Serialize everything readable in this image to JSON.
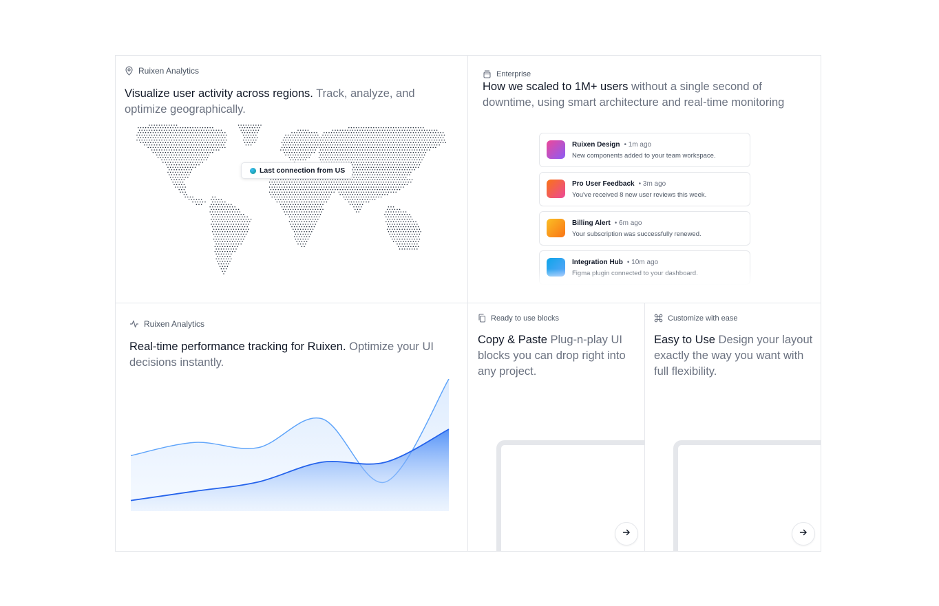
{
  "map_card": {
    "eyebrow": "Ruixen Analytics",
    "headline_strong": "Visualize user activity across regions.",
    "headline_muted": " Track, analyze, and optimize geographically.",
    "tooltip": "Last connection from US"
  },
  "enterprise_card": {
    "eyebrow": "Enterprise",
    "headline_strong": "How we scaled to 1M+ users",
    "headline_muted": " without a single second of downtime, using smart architecture and real-time monitoring",
    "notifications": [
      {
        "title": "Ruixen Design",
        "time": "• 1m ago",
        "body": "New components added to your team workspace.",
        "color_from": "#ec4899",
        "color_to": "#8b5cf6"
      },
      {
        "title": "Pro User Feedback",
        "time": "• 3m ago",
        "body": "You've received 8 new user reviews this week.",
        "color_from": "#f97316",
        "color_to": "#ec4899"
      },
      {
        "title": "Billing Alert",
        "time": "• 6m ago",
        "body": "Your subscription was successfully renewed.",
        "color_from": "#fbbf24",
        "color_to": "#f97316"
      },
      {
        "title": "Integration Hub",
        "time": "• 10m ago",
        "body": "Figma plugin connected to your dashboard.",
        "color_from": "#0ea5e9",
        "color_to": "#60a5fa"
      }
    ]
  },
  "performance_card": {
    "eyebrow": "Ruixen Analytics",
    "headline_strong": "Real-time performance tracking for Ruixen.",
    "headline_muted": " Optimize your UI decisions instantly."
  },
  "copy_card": {
    "eyebrow": "Ready to use blocks",
    "headline_strong": "Copy & Paste",
    "headline_muted": " Plug-n-play UI blocks you can drop right into any project."
  },
  "customize_card": {
    "eyebrow": "Customize with ease",
    "headline_strong": "Easy to Use",
    "headline_muted": " Design your layout exactly the way you want with full flexibility."
  },
  "chart_data": {
    "type": "area",
    "series": [
      {
        "values": [
          42,
          52,
          48,
          70,
          22,
          100
        ],
        "color": "#60a5fa",
        "fill": "#eff6ff"
      },
      {
        "values": [
          8,
          15,
          22,
          37,
          37,
          62
        ],
        "color": "#2563eb",
        "fill": "#bfdbfe"
      }
    ],
    "ylim": [
      0,
      100
    ],
    "grid": false
  },
  "colors": {
    "accent": "#2563eb",
    "accent_light": "#60a5fa",
    "border": "#e5e7eb",
    "muted_text": "#6b7280"
  }
}
